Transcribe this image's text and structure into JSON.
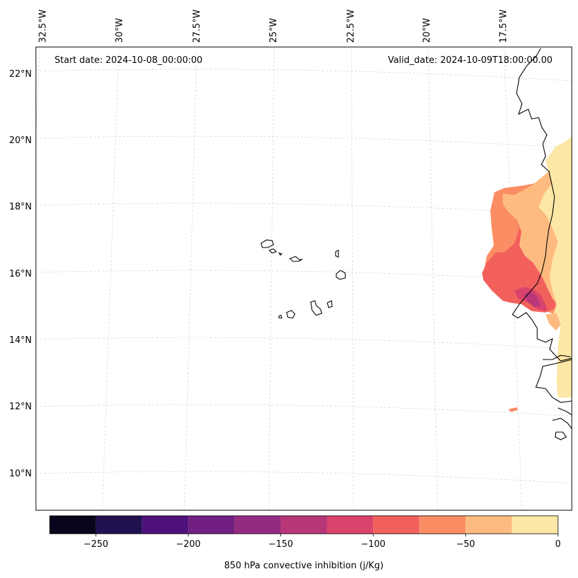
{
  "map": {
    "start_date": "Start date: 2024-10-08_00:00:00",
    "valid_date": "Valid_date: 2024-10-09T18:00:00.00",
    "lon_labels": [
      "32.5°W",
      "30°W",
      "27.5°W",
      "25°W",
      "22.5°W",
      "20°W",
      "17.5°W"
    ],
    "lat_labels": [
      "22°N",
      "20°N",
      "18°N",
      "16°N",
      "14°N",
      "12°N",
      "10°N"
    ],
    "grid_style": "dashed light gray",
    "region_features": [
      "Cape Verde islands",
      "West African coastline (Senegal, Mauritania, Gambia, Guinea-Bissau)"
    ]
  },
  "colorbar": {
    "label": "850 hPa convective inhibition (j/Kg)",
    "tick_labels": [
      "−250",
      "−200",
      "−150",
      "−100",
      "−50",
      "0"
    ],
    "bins": [
      -275,
      -250,
      -225,
      -200,
      -175,
      -150,
      -125,
      -100,
      -75,
      -50,
      -25,
      0
    ],
    "colors": [
      "#07061c",
      "#221150",
      "#4f117b",
      "#711f81",
      "#932b80",
      "#b73779",
      "#da446c",
      "#f2605c",
      "#fb8d63",
      "#febb80",
      "#fde7a6"
    ],
    "colormap": "magma"
  }
}
